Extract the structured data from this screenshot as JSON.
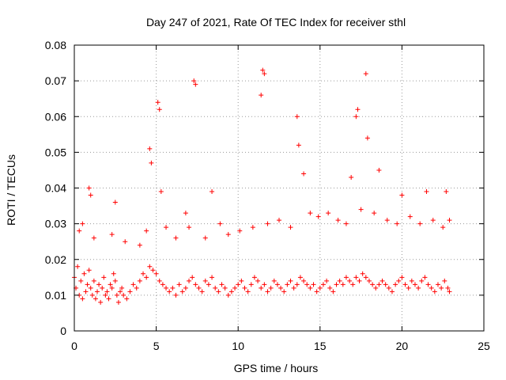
{
  "chart_data": {
    "type": "scatter",
    "title": "Day 247 of 2021, Rate Of TEC Index for receiver sthl",
    "xlabel": "GPS time / hours",
    "ylabel": "ROTI / TECUs",
    "xlim": [
      0,
      25
    ],
    "ylim": [
      0,
      0.08
    ],
    "x_ticks": [
      0,
      5,
      10,
      15,
      20,
      25
    ],
    "x_tick_labels": [
      "0",
      "5",
      "10",
      "15",
      "20",
      "25"
    ],
    "y_ticks": [
      0,
      0.01,
      0.02,
      0.03,
      0.04,
      0.05,
      0.06,
      0.07,
      0.08
    ],
    "y_tick_labels": [
      "0",
      "0.01",
      "0.02",
      "0.03",
      "0.04",
      "0.05",
      "0.06",
      "0.07",
      "0.08"
    ],
    "grid": true,
    "marker": "+",
    "color": "#ff0000",
    "series": [
      {
        "name": "ROTI",
        "x": [
          0.0,
          0.1,
          0.2,
          0.3,
          0.4,
          0.5,
          0.6,
          0.7,
          0.8,
          0.9,
          1.0,
          1.1,
          1.2,
          1.3,
          1.4,
          1.5,
          1.6,
          1.7,
          1.8,
          1.9,
          2.0,
          2.1,
          2.2,
          2.3,
          2.4,
          2.5,
          2.6,
          2.7,
          2.8,
          2.9,
          3.0,
          3.2,
          3.4,
          3.6,
          3.8,
          4.0,
          4.2,
          4.4,
          4.6,
          4.8,
          5.0,
          5.2,
          5.4,
          5.6,
          5.8,
          6.0,
          6.2,
          6.4,
          6.6,
          6.8,
          7.0,
          7.2,
          7.4,
          7.6,
          7.8,
          8.0,
          8.2,
          8.4,
          8.6,
          8.8,
          9.0,
          9.2,
          9.4,
          9.6,
          9.8,
          10.0,
          10.2,
          10.4,
          10.6,
          10.8,
          11.0,
          11.2,
          11.4,
          11.6,
          11.8,
          12.0,
          12.2,
          12.4,
          12.6,
          12.8,
          13.0,
          13.2,
          13.4,
          13.6,
          13.8,
          14.0,
          14.2,
          14.4,
          14.6,
          14.8,
          15.0,
          15.2,
          15.4,
          15.6,
          15.8,
          16.0,
          16.2,
          16.4,
          16.6,
          16.8,
          17.0,
          17.2,
          17.4,
          17.6,
          17.8,
          18.0,
          18.2,
          18.4,
          18.6,
          18.8,
          19.0,
          19.2,
          19.4,
          19.6,
          19.8,
          20.0,
          20.2,
          20.4,
          20.6,
          20.8,
          21.0,
          21.2,
          21.4,
          21.6,
          21.8,
          22.0,
          22.2,
          22.4,
          22.6,
          22.8,
          22.9,
          0.9,
          1.0,
          2.5,
          4.6,
          4.7,
          5.1,
          5.2,
          5.3,
          6.8,
          7.3,
          7.4,
          8.4,
          11.5,
          11.6,
          11.4,
          13.6,
          13.7,
          14.0,
          16.9,
          17.2,
          17.3,
          17.8,
          17.9,
          18.6,
          20.0,
          21.5,
          22.7,
          22.9,
          0.3,
          0.5,
          1.2,
          2.3,
          3.1,
          4.0,
          4.4,
          5.6,
          6.2,
          7.0,
          8.0,
          8.9,
          9.4,
          10.1,
          10.9,
          11.8,
          12.5,
          13.2,
          14.4,
          14.9,
          15.5,
          16.1,
          16.6,
          17.5,
          18.3,
          19.1,
          19.7,
          20.5,
          21.1,
          21.9,
          22.5
        ],
        "y": [
          0.015,
          0.012,
          0.018,
          0.01,
          0.014,
          0.009,
          0.016,
          0.011,
          0.013,
          0.017,
          0.012,
          0.01,
          0.014,
          0.009,
          0.011,
          0.013,
          0.008,
          0.012,
          0.015,
          0.01,
          0.011,
          0.009,
          0.013,
          0.012,
          0.016,
          0.014,
          0.01,
          0.008,
          0.011,
          0.012,
          0.01,
          0.009,
          0.011,
          0.013,
          0.012,
          0.014,
          0.016,
          0.015,
          0.018,
          0.017,
          0.016,
          0.014,
          0.013,
          0.012,
          0.011,
          0.012,
          0.01,
          0.013,
          0.011,
          0.012,
          0.014,
          0.015,
          0.013,
          0.012,
          0.011,
          0.014,
          0.013,
          0.015,
          0.012,
          0.011,
          0.013,
          0.012,
          0.01,
          0.011,
          0.012,
          0.013,
          0.014,
          0.012,
          0.011,
          0.013,
          0.015,
          0.014,
          0.012,
          0.013,
          0.011,
          0.012,
          0.014,
          0.013,
          0.012,
          0.011,
          0.013,
          0.014,
          0.012,
          0.013,
          0.015,
          0.014,
          0.013,
          0.012,
          0.013,
          0.011,
          0.012,
          0.013,
          0.014,
          0.012,
          0.011,
          0.013,
          0.014,
          0.013,
          0.015,
          0.014,
          0.013,
          0.015,
          0.014,
          0.016,
          0.015,
          0.014,
          0.013,
          0.012,
          0.013,
          0.014,
          0.013,
          0.012,
          0.011,
          0.013,
          0.014,
          0.015,
          0.013,
          0.012,
          0.014,
          0.013,
          0.012,
          0.014,
          0.015,
          0.013,
          0.012,
          0.011,
          0.013,
          0.012,
          0.014,
          0.012,
          0.011,
          0.04,
          0.038,
          0.036,
          0.051,
          0.047,
          0.064,
          0.062,
          0.039,
          0.033,
          0.07,
          0.069,
          0.039,
          0.073,
          0.072,
          0.066,
          0.06,
          0.052,
          0.044,
          0.043,
          0.06,
          0.062,
          0.072,
          0.054,
          0.045,
          0.038,
          0.039,
          0.039,
          0.031,
          0.028,
          0.03,
          0.026,
          0.027,
          0.025,
          0.024,
          0.028,
          0.029,
          0.026,
          0.029,
          0.026,
          0.03,
          0.027,
          0.028,
          0.029,
          0.03,
          0.031,
          0.029,
          0.033,
          0.032,
          0.033,
          0.031,
          0.03,
          0.034,
          0.033,
          0.031,
          0.03,
          0.032,
          0.03,
          0.031,
          0.029
        ]
      }
    ]
  }
}
